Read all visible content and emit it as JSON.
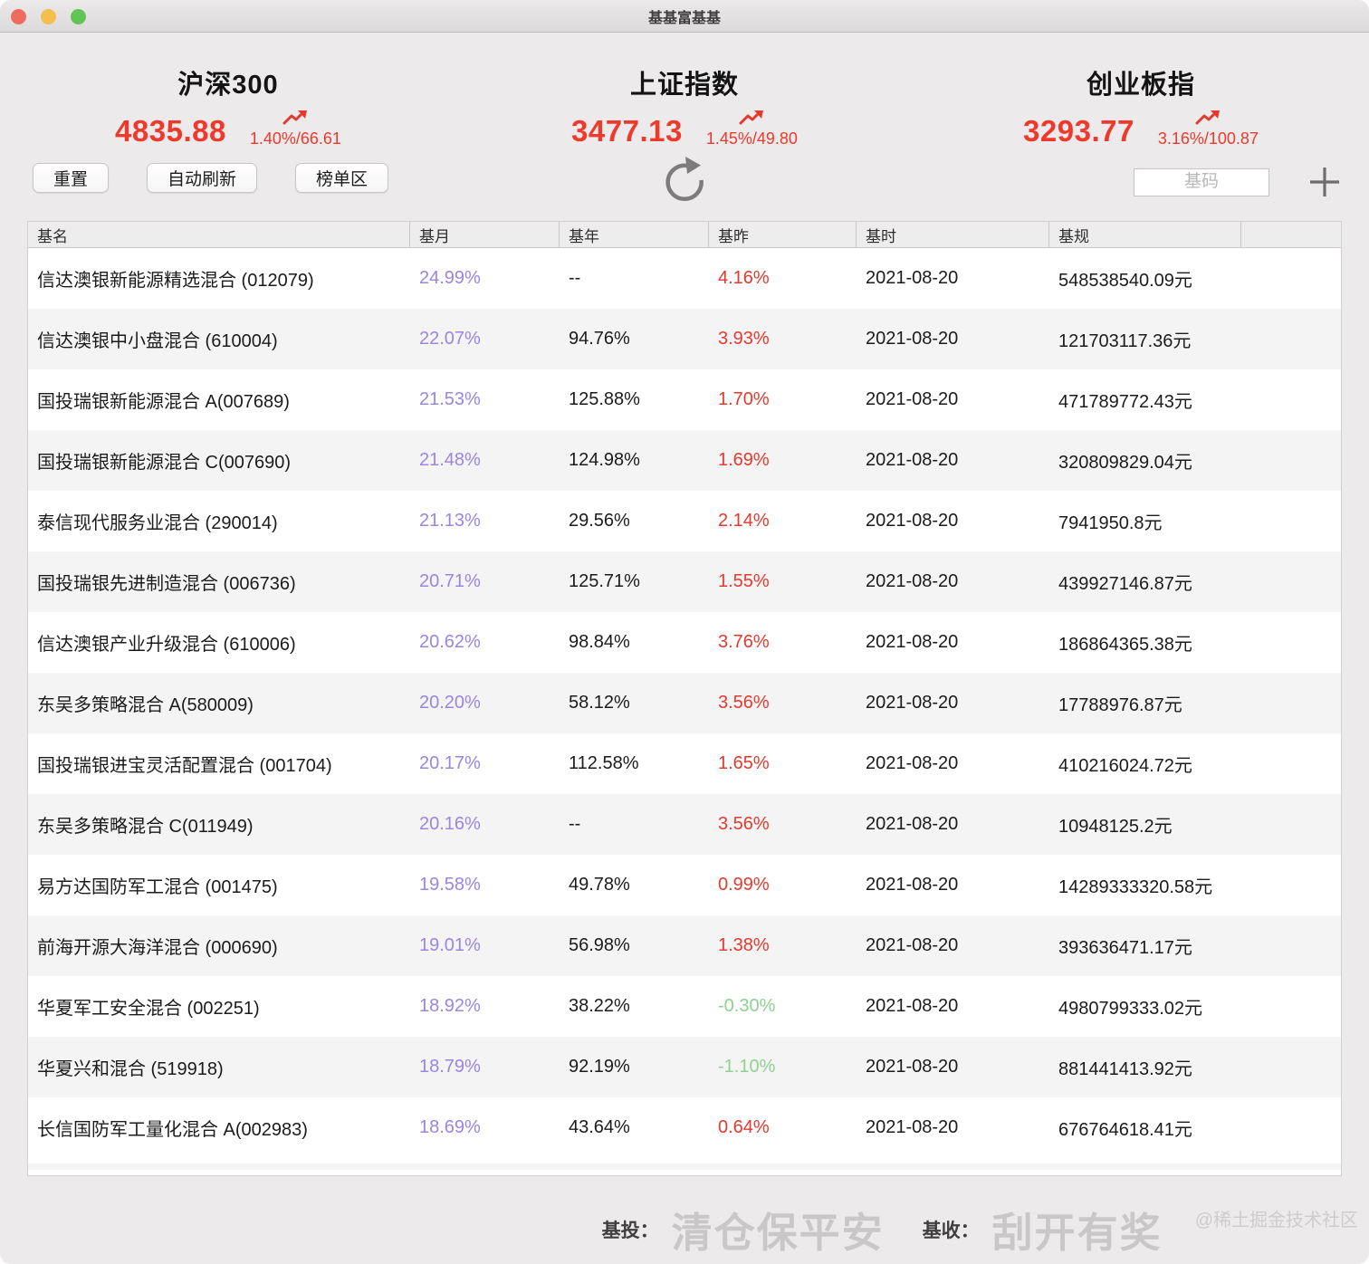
{
  "window": {
    "title": "基基富基基"
  },
  "colors": {
    "index_red": "#ee392d",
    "up_red": "#e6392e",
    "down_green": "#90d093",
    "month_purple": "#9b85e0"
  },
  "indices": [
    {
      "name": "沪深300",
      "value": "4835.88",
      "change": "1.40%/66.61"
    },
    {
      "name": "上证指数",
      "value": "3477.13",
      "change": "1.45%/49.80"
    },
    {
      "name": "创业板指",
      "value": "3293.77",
      "change": "3.16%/100.87"
    }
  ],
  "toolbar": {
    "reset_label": "重置",
    "auto_refresh_label": "自动刷新",
    "ranking_label": "榜单区",
    "code_placeholder": "基码"
  },
  "icons": {
    "trend_up": "trend-up-icon",
    "refresh": "refresh-icon",
    "add": "add-icon"
  },
  "table": {
    "headers": [
      "基名",
      "基月",
      "基年",
      "基昨",
      "基时",
      "基规"
    ],
    "rows": [
      {
        "name": "信达澳银新能源精选混合 (012079)",
        "month": "24.99%",
        "year": "--",
        "yesterday": "4.16%",
        "date": "2021-08-20",
        "scale": "548538540.09元"
      },
      {
        "name": "信达澳银中小盘混合 (610004)",
        "month": "22.07%",
        "year": "94.76%",
        "yesterday": "3.93%",
        "date": "2021-08-20",
        "scale": "121703117.36元"
      },
      {
        "name": "国投瑞银新能源混合 A(007689)",
        "month": "21.53%",
        "year": "125.88%",
        "yesterday": "1.70%",
        "date": "2021-08-20",
        "scale": "471789772.43元"
      },
      {
        "name": "国投瑞银新能源混合 C(007690)",
        "month": "21.48%",
        "year": "124.98%",
        "yesterday": "1.69%",
        "date": "2021-08-20",
        "scale": "320809829.04元"
      },
      {
        "name": "泰信现代服务业混合 (290014)",
        "month": "21.13%",
        "year": "29.56%",
        "yesterday": "2.14%",
        "date": "2021-08-20",
        "scale": "7941950.8元"
      },
      {
        "name": "国投瑞银先进制造混合 (006736)",
        "month": "20.71%",
        "year": "125.71%",
        "yesterday": "1.55%",
        "date": "2021-08-20",
        "scale": "439927146.87元"
      },
      {
        "name": "信达澳银产业升级混合 (610006)",
        "month": "20.62%",
        "year": "98.84%",
        "yesterday": "3.76%",
        "date": "2021-08-20",
        "scale": "186864365.38元"
      },
      {
        "name": "东吴多策略混合 A(580009)",
        "month": "20.20%",
        "year": "58.12%",
        "yesterday": "3.56%",
        "date": "2021-08-20",
        "scale": "17788976.87元"
      },
      {
        "name": "国投瑞银进宝灵活配置混合 (001704)",
        "month": "20.17%",
        "year": "112.58%",
        "yesterday": "1.65%",
        "date": "2021-08-20",
        "scale": "410216024.72元"
      },
      {
        "name": "东吴多策略混合 C(011949)",
        "month": "20.16%",
        "year": "--",
        "yesterday": "3.56%",
        "date": "2021-08-20",
        "scale": "10948125.2元"
      },
      {
        "name": "易方达国防军工混合 (001475)",
        "month": "19.58%",
        "year": "49.78%",
        "yesterday": "0.99%",
        "date": "2021-08-20",
        "scale": "14289333320.58元"
      },
      {
        "name": "前海开源大海洋混合 (000690)",
        "month": "19.01%",
        "year": "56.98%",
        "yesterday": "1.38%",
        "date": "2021-08-20",
        "scale": "393636471.17元"
      },
      {
        "name": "华夏军工安全混合 (002251)",
        "month": "18.92%",
        "year": "38.22%",
        "yesterday": "-0.30%",
        "date": "2021-08-20",
        "scale": "4980799333.02元"
      },
      {
        "name": "华夏兴和混合 (519918)",
        "month": "18.79%",
        "year": "92.19%",
        "yesterday": "-1.10%",
        "date": "2021-08-20",
        "scale": "881441413.92元"
      },
      {
        "name": "长信国防军工量化混合 A(002983)",
        "month": "18.69%",
        "year": "43.64%",
        "yesterday": "0.64%",
        "date": "2021-08-20",
        "scale": "676764618.41元"
      }
    ]
  },
  "footer": {
    "label1": "基投：",
    "text1": "清仓保平安",
    "label2": "基收：",
    "text2": "刮开有奖",
    "credit": "@稀土掘金技术社区"
  }
}
